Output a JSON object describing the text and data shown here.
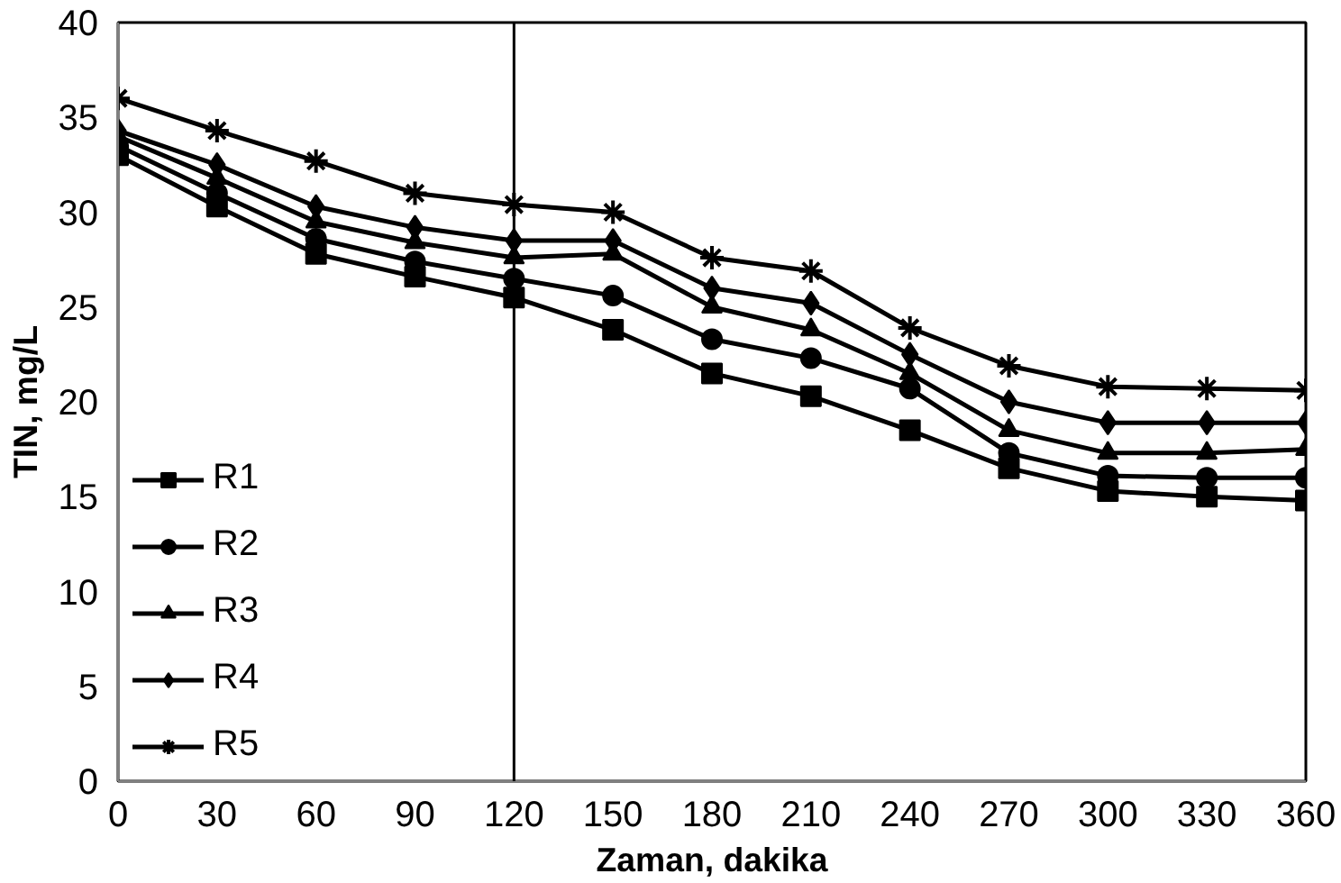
{
  "chart_data": {
    "type": "line",
    "xlabel": "Zaman, dakika",
    "ylabel": "TIN, mg/L",
    "x": [
      0,
      30,
      60,
      90,
      120,
      150,
      180,
      210,
      240,
      270,
      300,
      330,
      360
    ],
    "xlim": [
      0,
      360
    ],
    "xticks": [
      0,
      30,
      60,
      90,
      120,
      150,
      180,
      210,
      240,
      270,
      300,
      330,
      360
    ],
    "ylim": [
      0,
      40
    ],
    "yticks": [
      0,
      5,
      10,
      15,
      20,
      25,
      30,
      35,
      40
    ],
    "grid": false,
    "legend": "bottom left",
    "line_style": "solid",
    "ref_lines": [
      {
        "axis": "x",
        "value": 120,
        "color": "#000000"
      }
    ],
    "series": [
      {
        "name": "R1",
        "color": "#000000",
        "marker": "square",
        "values": [
          33,
          30.3,
          27.8,
          26.6,
          25.5,
          23.8,
          21.5,
          20.3,
          18.5,
          16.5,
          15.3,
          15,
          14.8
        ]
      },
      {
        "name": "R2",
        "color": "#000000",
        "marker": "circle",
        "values": [
          33.5,
          31,
          28.6,
          27.4,
          26.5,
          25.6,
          23.3,
          22.3,
          20.7,
          17.3,
          16.1,
          16,
          16
        ]
      },
      {
        "name": "R3",
        "color": "#000000",
        "marker": "triangle",
        "values": [
          34,
          31.8,
          29.5,
          28.4,
          27.6,
          27.8,
          25,
          23.8,
          21.5,
          18.5,
          17.3,
          17.3,
          17.5
        ]
      },
      {
        "name": "R4",
        "color": "#000000",
        "marker": "diamond",
        "values": [
          34.3,
          32.5,
          30.3,
          29.2,
          28.5,
          28.5,
          26,
          25.2,
          22.5,
          20,
          18.9,
          18.9,
          18.9
        ]
      },
      {
        "name": "R5",
        "color": "#000000",
        "marker": "cross",
        "values": [
          36,
          34.3,
          32.7,
          31,
          30.4,
          30,
          27.6,
          26.9,
          23.9,
          21.9,
          20.8,
          20.7,
          20.6
        ]
      }
    ]
  }
}
